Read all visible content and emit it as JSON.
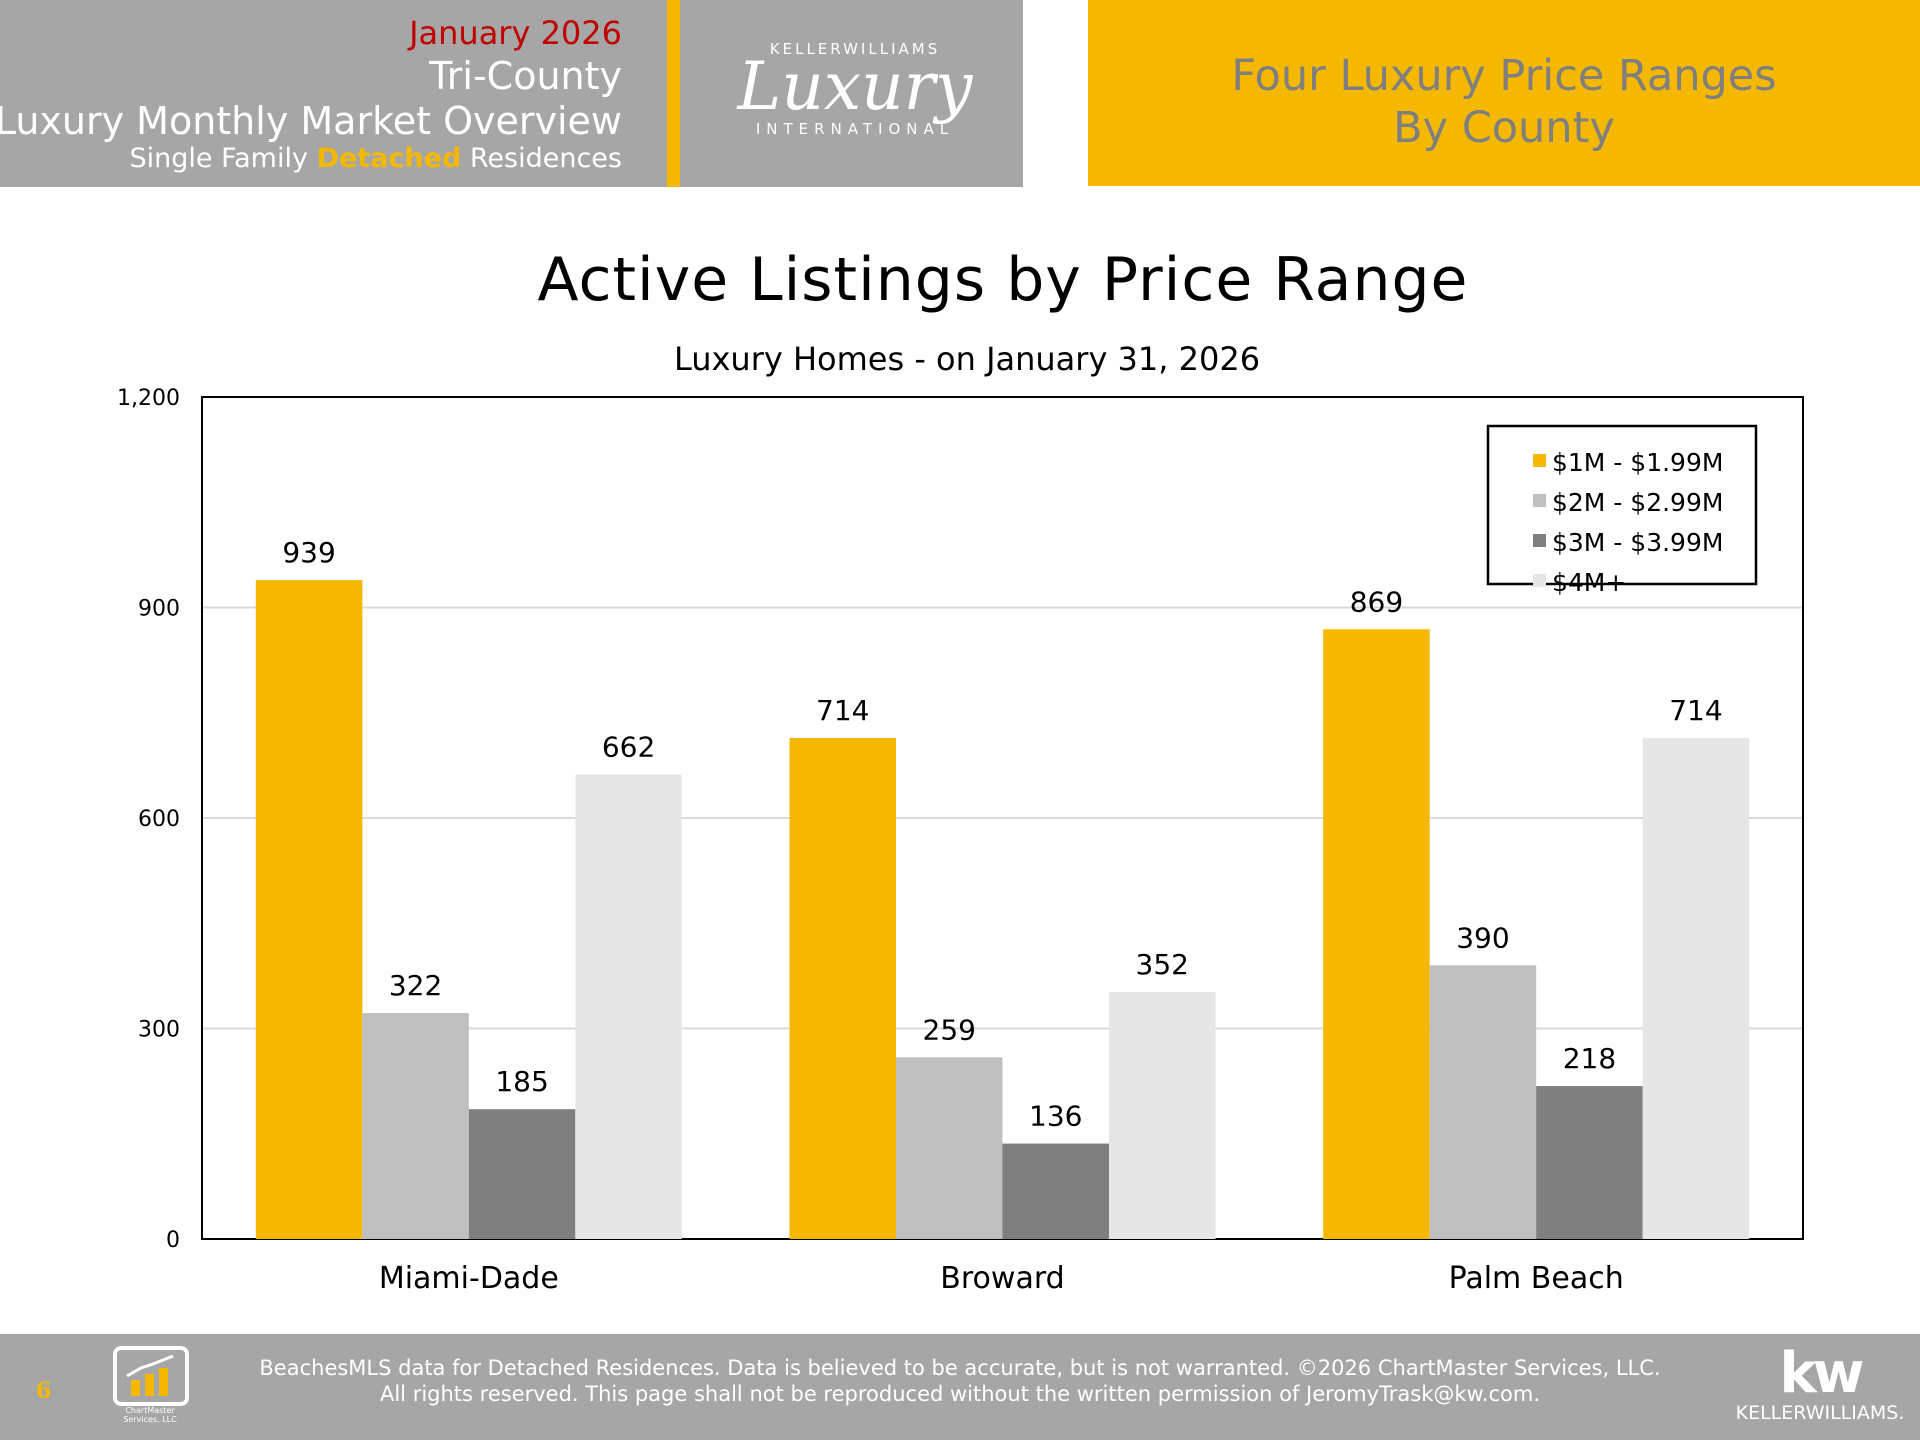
{
  "header": {
    "month": "January 2026",
    "region": "Tri-County",
    "report_title": "Luxury Monthly Market Overview",
    "property_prefix": "Single Family",
    "property_highlight": "Detached",
    "property_suffix": "Residences",
    "right_title_line1": "Four Luxury Price Ranges",
    "right_title_line2": "By County"
  },
  "logo": {
    "brand_top": "KELLERWILLIAMS",
    "brand_main": "Luxury",
    "brand_bottom": "INTERNATIONAL"
  },
  "colors": {
    "accent": "#f5b800",
    "header_gray": "#a6a6a6",
    "series": [
      "#f5b800",
      "#bfbfbf",
      "#7f7f7f",
      "#e6e6e6"
    ]
  },
  "chart_data": {
    "type": "bar",
    "title": "Active Listings by Price Range",
    "subtitle": "Luxury Homes - on January 31, 2026",
    "categories": [
      "Miami-Dade",
      "Broward",
      "Palm Beach"
    ],
    "series": [
      {
        "name": "$1M - $1.99M",
        "values": [
          939,
          714,
          869
        ]
      },
      {
        "name": "$2M - $2.99M",
        "values": [
          322,
          259,
          390
        ]
      },
      {
        "name": "$3M - $3.99M",
        "values": [
          185,
          136,
          218
        ]
      },
      {
        "name": "$4M+",
        "values": [
          662,
          352,
          714
        ]
      }
    ],
    "ylim": [
      0,
      1200
    ],
    "yticks": [
      0,
      300,
      600,
      900,
      1200
    ],
    "ytick_labels": [
      "0",
      "300",
      "600",
      "900",
      "1,200"
    ],
    "grid": true,
    "legend_position": "top-right",
    "xlabel": "",
    "ylabel": ""
  },
  "footer": {
    "page_number": "6",
    "company_logo_text": "ChartMaster Services, LLC",
    "disclaimer_line1": "BeachesMLS data for Detached Residences.  Data is believed to be accurate, but is not warranted.   ©2026  ChartMaster Services, LLC.",
    "disclaimer_line2": "All rights reserved. This page shall not be reproduced without the written permission of JeromyTrask@kw.com.",
    "kw_mark": "kw",
    "kw_word": "KELLERWILLIAMS."
  }
}
